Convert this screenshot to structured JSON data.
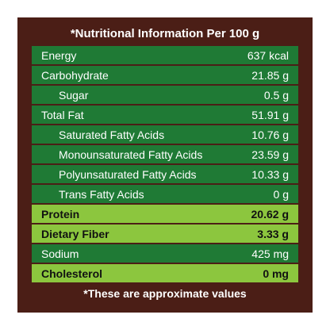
{
  "header": {
    "title": "*Nutritional Information Per 100 g"
  },
  "table": {
    "rows": [
      [
        "Energy",
        "637 kcal"
      ],
      [
        "Carbohydrate",
        "21.85 g"
      ],
      [
        "Sugar",
        "0.5 g"
      ],
      [
        "Total Fat",
        "51.91 g"
      ],
      [
        "Saturated Fatty Acids",
        "10.76 g"
      ],
      [
        "Monounsaturated Fatty Acids",
        "23.59 g"
      ],
      [
        "Polyunsaturated Fatty Acids",
        "10.33 g"
      ],
      [
        "Trans Fatty Acids",
        "0 g"
      ],
      [
        "Protein",
        "20.62 g"
      ],
      [
        "Dietary Fiber",
        "3.33 g"
      ],
      [
        "Sodium",
        "425 mg"
      ],
      [
        "Cholesterol",
        "0 mg"
      ]
    ]
  },
  "footer": {
    "note": "*These are approximate values"
  }
}
